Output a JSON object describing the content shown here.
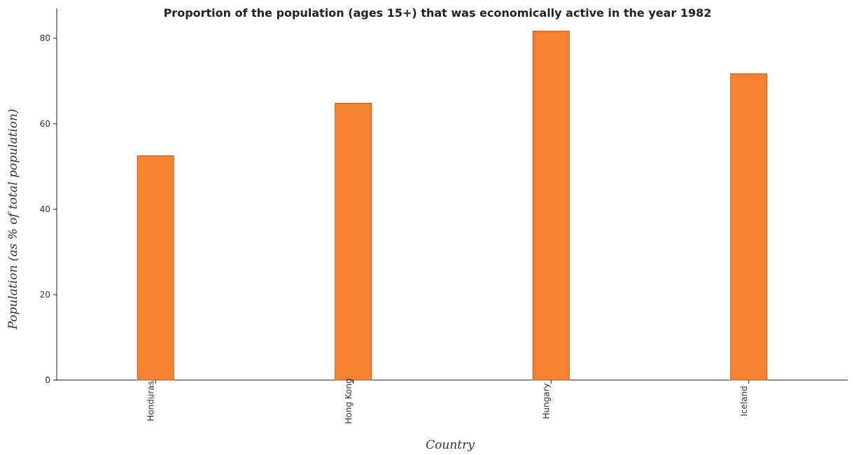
{
  "chart_data": {
    "type": "bar",
    "title": "Proportion of the population (ages 15+) that was economically active in the year 1982",
    "xlabel": "Country",
    "ylabel": "Population (as % of total population)",
    "categories": [
      "Honduras",
      "Hong Kong",
      "Hungary",
      "Iceland"
    ],
    "values": [
      52.5,
      64.8,
      81.7,
      71.7
    ],
    "ylim": [
      0,
      87
    ],
    "yticks": [
      0,
      20,
      40,
      60,
      80
    ],
    "grid": false,
    "legend": "none",
    "colors": {
      "bar_fill": "#f58231",
      "bar_stroke": "#b95a1c",
      "axis": "#222222"
    }
  }
}
